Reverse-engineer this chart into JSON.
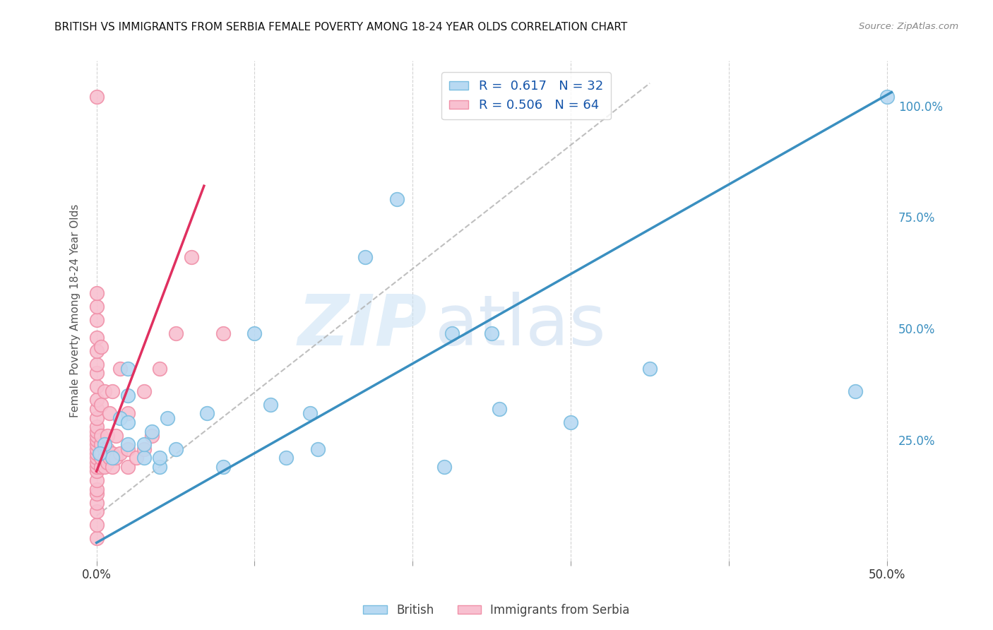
{
  "title": "BRITISH VS IMMIGRANTS FROM SERBIA FEMALE POVERTY AMONG 18-24 YEAR OLDS CORRELATION CHART",
  "source": "Source: ZipAtlas.com",
  "ylabel": "Female Poverty Among 18-24 Year Olds",
  "xlim": [
    -0.005,
    0.505
  ],
  "ylim": [
    -0.02,
    1.1
  ],
  "x_ticks": [
    0.0,
    0.1,
    0.2,
    0.3,
    0.4,
    0.5
  ],
  "y_ticks_right": [
    0.25,
    0.5,
    0.75,
    1.0
  ],
  "y_tick_labels_right": [
    "25.0%",
    "50.0%",
    "75.0%",
    "100.0%"
  ],
  "british_color": "#7abde0",
  "british_color_fill": "#b8d9f2",
  "serbia_color": "#f090a8",
  "serbia_color_fill": "#f8c0d0",
  "british_line_color": "#3a8fc0",
  "serbia_line_color": "#e03060",
  "R_british": 0.617,
  "N_british": 32,
  "R_serbia": 0.506,
  "N_serbia": 64,
  "watermark_zip": "ZIP",
  "watermark_atlas": "atlas",
  "background_color": "#ffffff",
  "grid_color": "#c8c8c8",
  "british_scatter_x": [
    0.005,
    0.01,
    0.015,
    0.02,
    0.02,
    0.02,
    0.02,
    0.03,
    0.03,
    0.035,
    0.04,
    0.04,
    0.045,
    0.05,
    0.07,
    0.08,
    0.1,
    0.11,
    0.12,
    0.135,
    0.14,
    0.17,
    0.19,
    0.22,
    0.225,
    0.25,
    0.255,
    0.3,
    0.35,
    0.48,
    0.5,
    0.002
  ],
  "british_scatter_y": [
    0.24,
    0.21,
    0.3,
    0.24,
    0.29,
    0.35,
    0.41,
    0.21,
    0.24,
    0.27,
    0.19,
    0.21,
    0.3,
    0.23,
    0.31,
    0.19,
    0.49,
    0.33,
    0.21,
    0.31,
    0.23,
    0.66,
    0.79,
    0.19,
    0.49,
    0.49,
    0.32,
    0.29,
    0.41,
    0.36,
    1.02,
    0.22
  ],
  "serbia_scatter_x": [
    0.0,
    0.0,
    0.0,
    0.0,
    0.0,
    0.0,
    0.0,
    0.0,
    0.0,
    0.0,
    0.0,
    0.0,
    0.0,
    0.0,
    0.0,
    0.0,
    0.0,
    0.0,
    0.0,
    0.0,
    0.0,
    0.0,
    0.0,
    0.0,
    0.0,
    0.0,
    0.0,
    0.0,
    0.0,
    0.0,
    0.003,
    0.003,
    0.003,
    0.003,
    0.003,
    0.003,
    0.003,
    0.005,
    0.005,
    0.005,
    0.005,
    0.007,
    0.007,
    0.007,
    0.008,
    0.008,
    0.01,
    0.01,
    0.01,
    0.012,
    0.012,
    0.015,
    0.015,
    0.02,
    0.02,
    0.02,
    0.025,
    0.03,
    0.03,
    0.035,
    0.04,
    0.05,
    0.06,
    0.08
  ],
  "serbia_scatter_y": [
    0.03,
    0.06,
    0.09,
    0.11,
    0.13,
    0.14,
    0.16,
    0.18,
    0.19,
    0.2,
    0.21,
    0.22,
    0.23,
    0.24,
    0.25,
    0.26,
    0.27,
    0.28,
    0.3,
    0.32,
    0.34,
    0.37,
    0.4,
    0.42,
    0.45,
    0.48,
    0.52,
    0.55,
    0.58,
    1.02,
    0.19,
    0.21,
    0.22,
    0.24,
    0.26,
    0.33,
    0.46,
    0.19,
    0.21,
    0.23,
    0.36,
    0.2,
    0.23,
    0.26,
    0.21,
    0.31,
    0.19,
    0.22,
    0.36,
    0.21,
    0.26,
    0.22,
    0.41,
    0.19,
    0.23,
    0.31,
    0.21,
    0.23,
    0.36,
    0.26,
    0.41,
    0.49,
    0.66,
    0.49
  ],
  "brit_line_x0": 0.0,
  "brit_line_x1": 0.503,
  "brit_line_y0": 0.02,
  "brit_line_y1": 1.03,
  "serb_line_x0": 0.0,
  "serb_line_x1": 0.068,
  "serb_line_y0": 0.18,
  "serb_line_y1": 0.82,
  "dash_line_x0": 0.0,
  "dash_line_x1": 0.35,
  "dash_line_y0": 0.08,
  "dash_line_y1": 1.05
}
